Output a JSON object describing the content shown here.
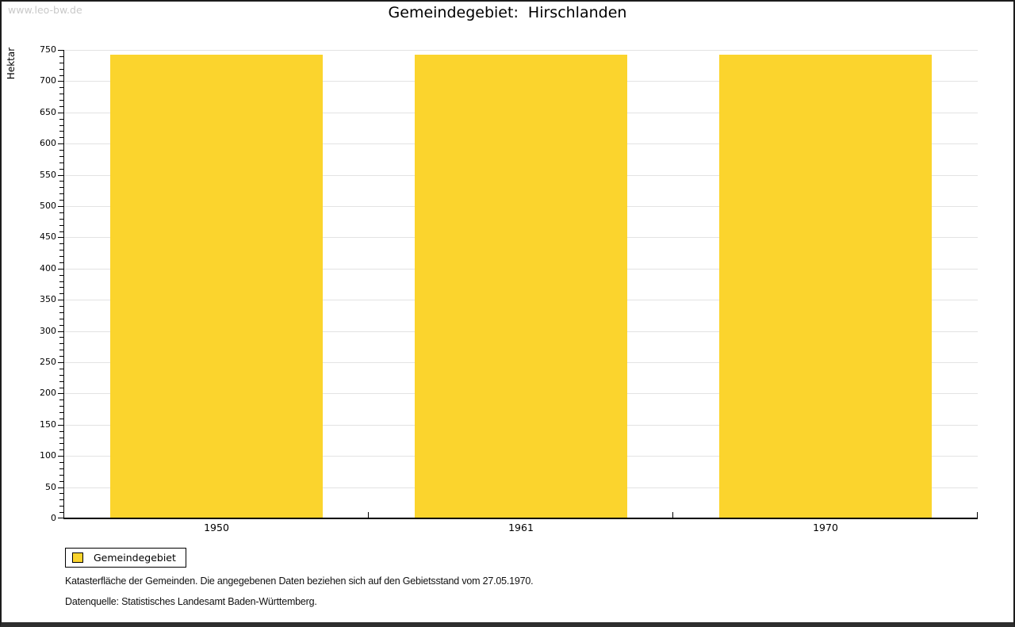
{
  "watermark": "www.leo-bw.de",
  "chart_data": {
    "type": "bar",
    "title": "Gemeindegebiet:  Hirschlanden",
    "categories": [
      "1950",
      "1961",
      "1970"
    ],
    "values": [
      742,
      742,
      742
    ],
    "ylabel": "Hektar",
    "xlabel": "",
    "ylim": [
      0,
      750
    ],
    "y_major_step": 50,
    "y_minor_step": 10,
    "grid": true,
    "gridline_color": "#e3e3e3",
    "bar_color": "#fbd42d",
    "legend": {
      "position": "bottom-left",
      "entries": [
        {
          "label": "Gemeindegebiet",
          "color": "#fbd42d"
        }
      ]
    }
  },
  "footer": {
    "line1": "Katasterfläche der Gemeinden. Die angegebenen Daten beziehen sich auf den Gebietsstand vom 27.05.1970.",
    "line2": "Datenquelle: Statistisches Landesamt Baden-Württemberg."
  }
}
